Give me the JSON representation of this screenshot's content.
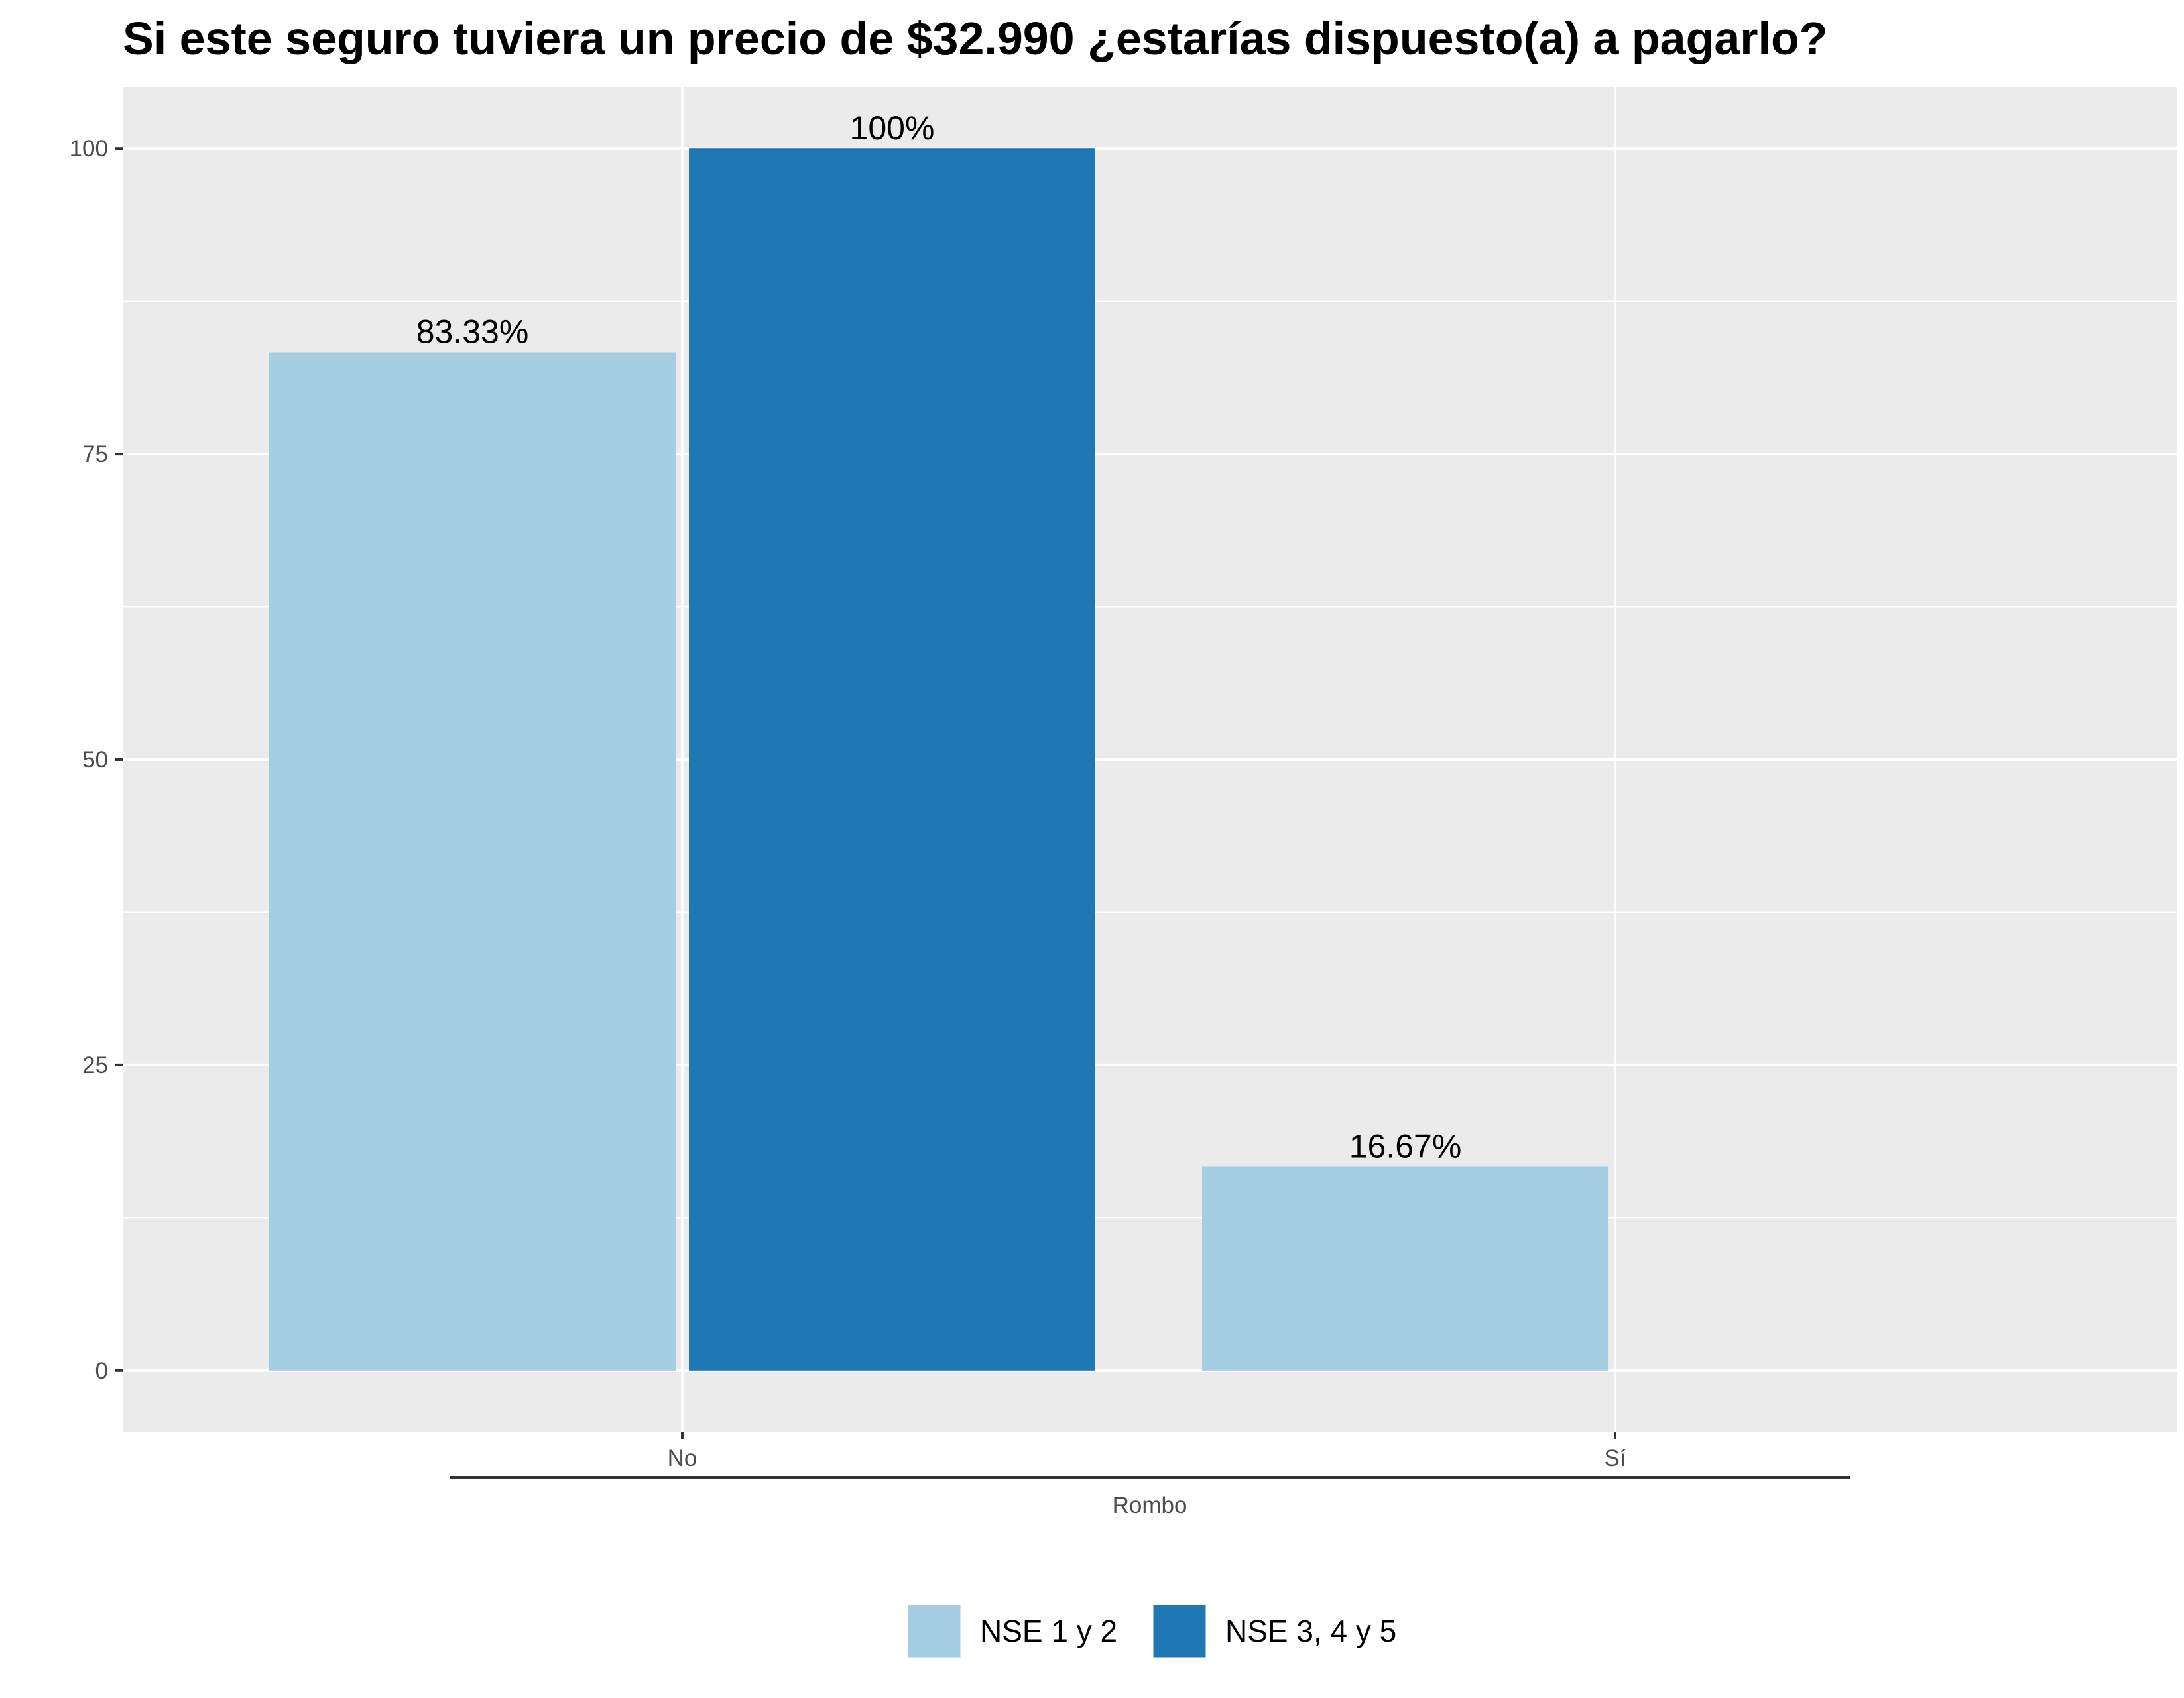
{
  "chart_data": {
    "type": "bar",
    "title": "Si este seguro tuviera un precio de $32.990 ¿estarías dispuesto(a) a pagarlo?",
    "xlabel": "",
    "ylabel": "",
    "group_label": "Rombo",
    "categories": [
      "No",
      "Sí"
    ],
    "series": [
      {
        "name": "NSE 1 y 2",
        "color": "#a6cee3",
        "values": [
          83.33,
          16.67
        ],
        "labels": [
          "83.33%",
          "16.67%"
        ]
      },
      {
        "name": "NSE 3, 4 y 5",
        "color": "#1f78b4",
        "values": [
          100,
          null
        ],
        "labels": [
          "100%",
          ""
        ]
      }
    ],
    "ylim": [
      -5,
      105
    ],
    "yticks": [
      0,
      25,
      50,
      75,
      100
    ],
    "grid": true,
    "legend_position": "bottom"
  }
}
